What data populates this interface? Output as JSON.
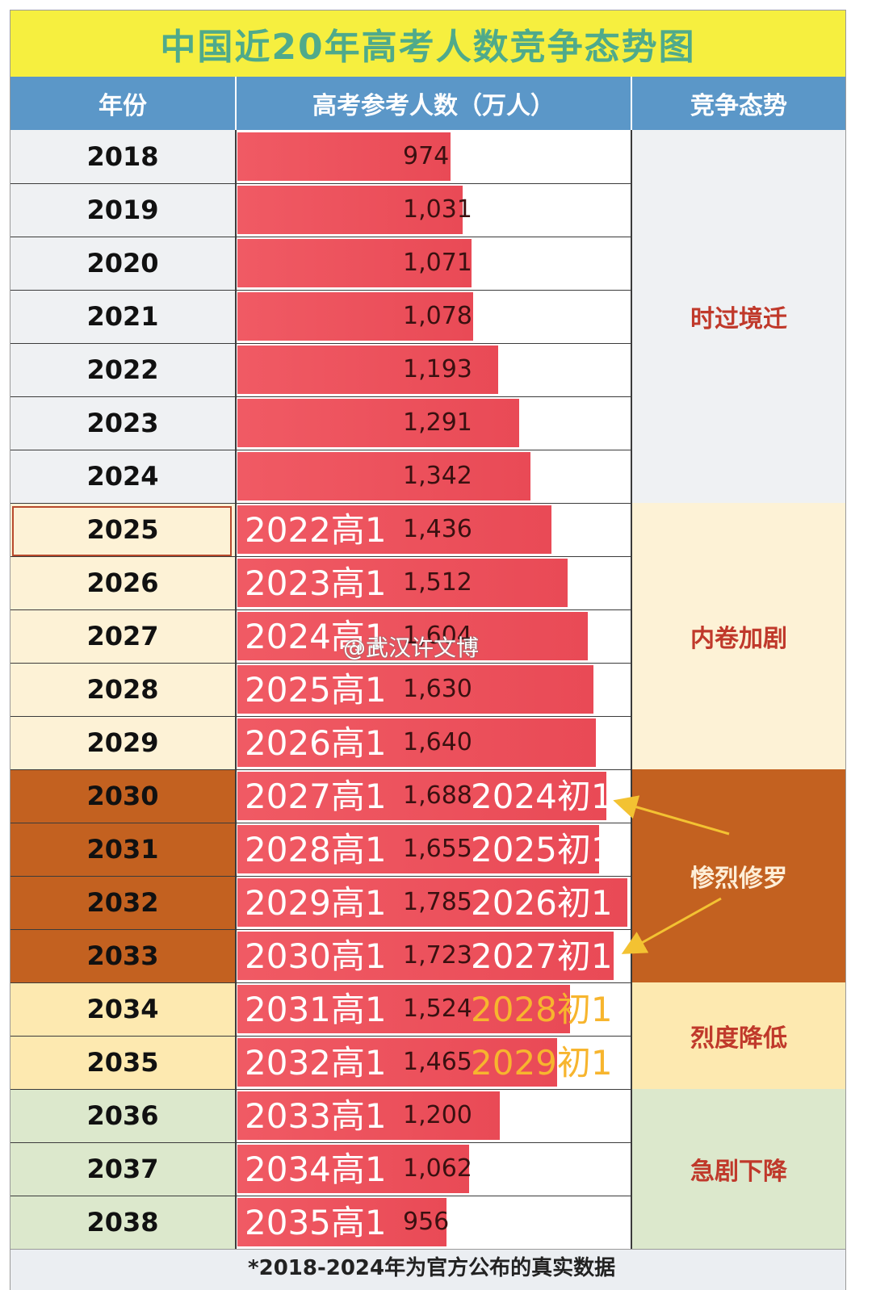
{
  "title": "中国近20年高考人数竞争态势图",
  "headers": {
    "year": "年份",
    "count": "高考参考人数（万人）",
    "trend": "竞争态势"
  },
  "chart_data": {
    "type": "bar",
    "title": "中国近20年高考人数竞争态势图",
    "ylabel": "高考参考人数（万人）",
    "xmax": 1800,
    "rows": [
      {
        "year": "2018",
        "value": 974,
        "value_label": "974",
        "h_label": "",
        "c_label": ""
      },
      {
        "year": "2019",
        "value": 1031,
        "value_label": "1,031",
        "h_label": "",
        "c_label": ""
      },
      {
        "year": "2020",
        "value": 1071,
        "value_label": "1,071",
        "h_label": "",
        "c_label": ""
      },
      {
        "year": "2021",
        "value": 1078,
        "value_label": "1,078",
        "h_label": "",
        "c_label": ""
      },
      {
        "year": "2022",
        "value": 1193,
        "value_label": "1,193",
        "h_label": "",
        "c_label": ""
      },
      {
        "year": "2023",
        "value": 1291,
        "value_label": "1,291",
        "h_label": "",
        "c_label": ""
      },
      {
        "year": "2024",
        "value": 1342,
        "value_label": "1,342",
        "h_label": "",
        "c_label": ""
      },
      {
        "year": "2025",
        "value": 1436,
        "value_label": "1,436",
        "h_label": "2022高1",
        "c_label": ""
      },
      {
        "year": "2026",
        "value": 1512,
        "value_label": "1,512",
        "h_label": "2023高1",
        "c_label": ""
      },
      {
        "year": "2027",
        "value": 1604,
        "value_label": "1,604",
        "h_label": "2024高1",
        "c_label": ""
      },
      {
        "year": "2028",
        "value": 1630,
        "value_label": "1,630",
        "h_label": "2025高1",
        "c_label": ""
      },
      {
        "year": "2029",
        "value": 1640,
        "value_label": "1,640",
        "h_label": "2026高1",
        "c_label": ""
      },
      {
        "year": "2030",
        "value": 1688,
        "value_label": "1,688",
        "h_label": "2027高1",
        "c_label": "2024初1"
      },
      {
        "year": "2031",
        "value": 1655,
        "value_label": "1,655",
        "h_label": "2028高1",
        "c_label": "2025初1"
      },
      {
        "year": "2032",
        "value": 1785,
        "value_label": "1,785",
        "h_label": "2029高1",
        "c_label": "2026初1"
      },
      {
        "year": "2033",
        "value": 1723,
        "value_label": "1,723",
        "h_label": "2030高1",
        "c_label": "2027初1"
      },
      {
        "year": "2034",
        "value": 1524,
        "value_label": "1,524",
        "h_label": "2031高1",
        "c_label": "2028初1"
      },
      {
        "year": "2035",
        "value": 1465,
        "value_label": "1,465",
        "h_label": "2032高1",
        "c_label": "2029初1"
      },
      {
        "year": "2036",
        "value": 1200,
        "value_label": "1,200",
        "h_label": "2033高1",
        "c_label": ""
      },
      {
        "year": "2037",
        "value": 1062,
        "value_label": "1,062",
        "h_label": "2034高1",
        "c_label": ""
      },
      {
        "year": "2038",
        "value": 956,
        "value_label": "956",
        "h_label": "2035高1",
        "c_label": ""
      }
    ],
    "groups": [
      {
        "label": "时过境迁",
        "start": 0,
        "end": 6,
        "bg": "#eff1f3",
        "color": "#c0392b"
      },
      {
        "label": "内卷加剧",
        "start": 7,
        "end": 11,
        "bg": "#fdf2d6",
        "color": "#c0392b"
      },
      {
        "label": "惨烈修罗",
        "start": 12,
        "end": 15,
        "bg": "#c36120",
        "color": "#fdeed7"
      },
      {
        "label": "烈度降低",
        "start": 16,
        "end": 17,
        "bg": "#fde9b0",
        "color": "#c0392b"
      },
      {
        "label": "急剧下降",
        "start": 18,
        "end": 20,
        "bg": "#dce8cc",
        "color": "#c0392b"
      }
    ],
    "row_year_bg": [
      "#eff1f3",
      "#eff1f3",
      "#eff1f3",
      "#eff1f3",
      "#eff1f3",
      "#eff1f3",
      "#eff1f3",
      "#fdf2d6",
      "#fdf2d6",
      "#fdf2d6",
      "#fdf2d6",
      "#fdf2d6",
      "#c36120",
      "#c36120",
      "#c36120",
      "#c36120",
      "#fde9b0",
      "#fde9b0",
      "#dce8cc",
      "#dce8cc",
      "#dce8cc"
    ],
    "c_label_colors": [
      "#ffffff",
      "#ffffff",
      "#ffffff",
      "#ffffff",
      "#f7b52e",
      "#f7b52e"
    ]
  },
  "watermark": "@武汉许文博",
  "footer": "*2018-2024年为官方公布的真实数据"
}
